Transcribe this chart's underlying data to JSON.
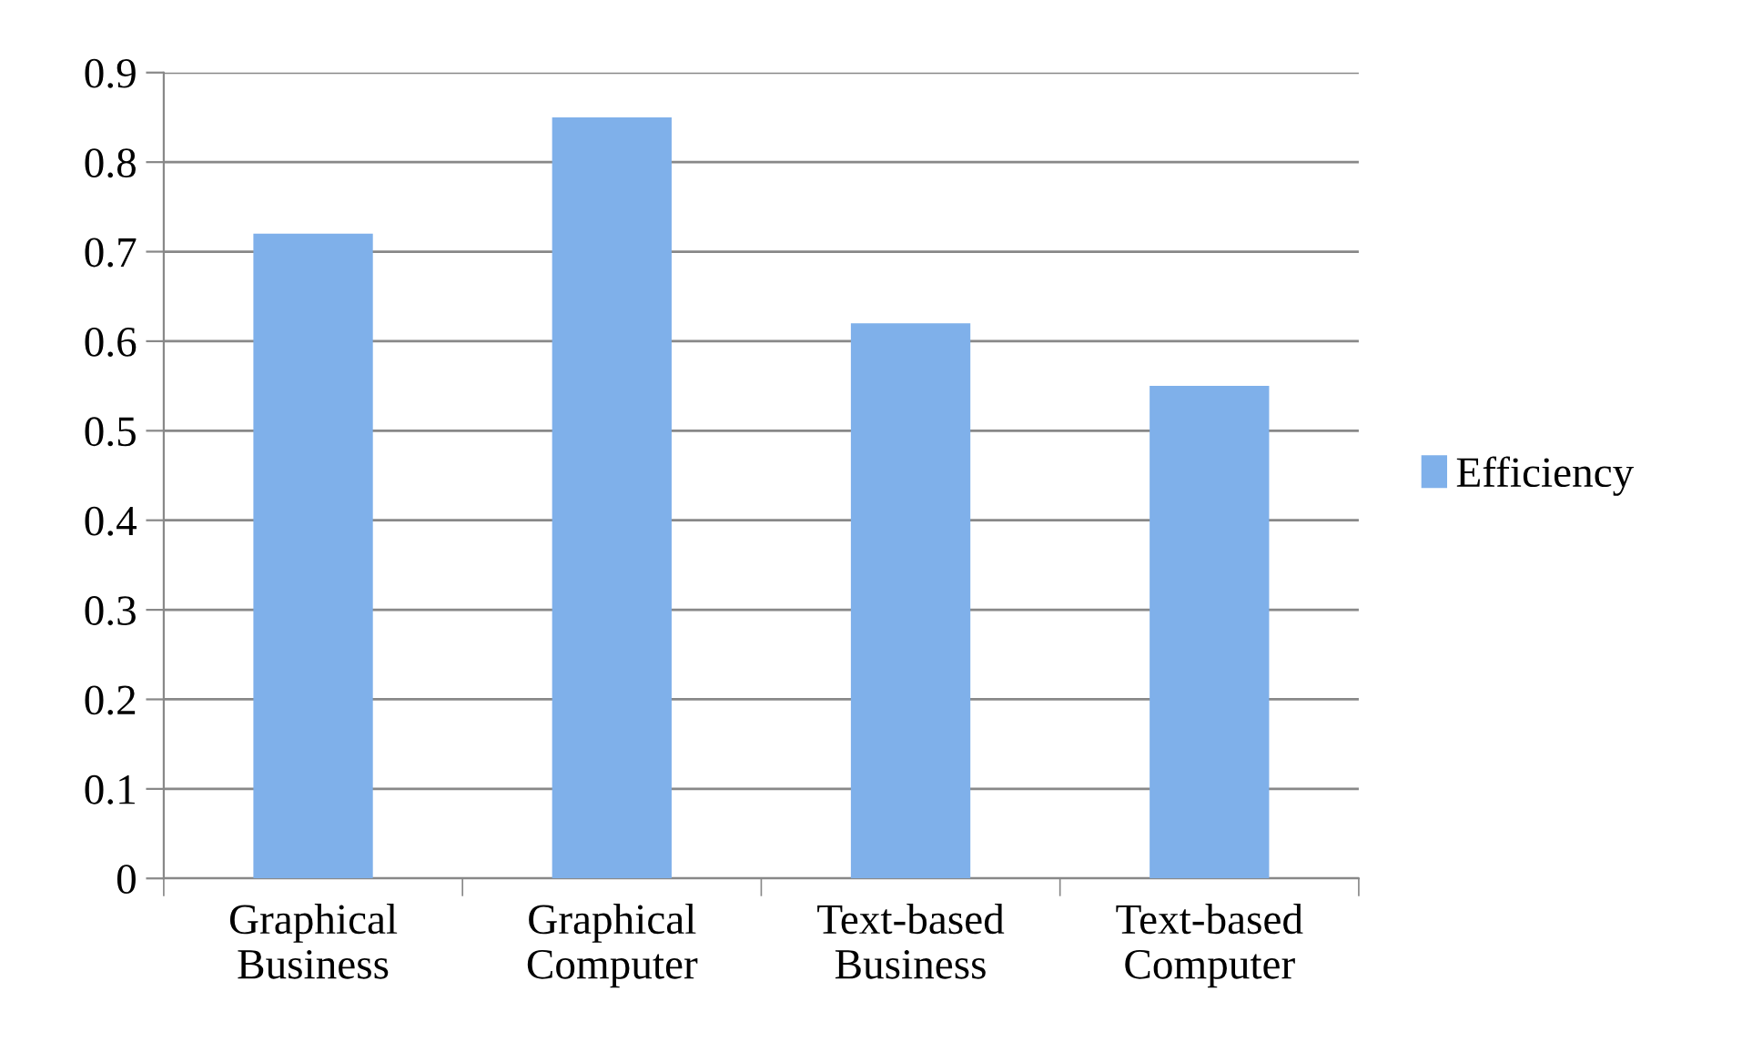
{
  "chart_data": {
    "type": "bar",
    "categories": [
      "Graphical\nBusiness",
      "Graphical\nComputer",
      "Text-based\nBusiness",
      "Text-based\nComputer"
    ],
    "series": [
      {
        "name": "Efficiency",
        "color": "#7fb0ea",
        "values": [
          0.72,
          0.85,
          0.62,
          0.55
        ]
      }
    ],
    "ylim": [
      0,
      0.9
    ],
    "yticks": [
      0,
      0.1,
      0.2,
      0.3,
      0.4,
      0.5,
      0.6,
      0.7,
      0.8,
      0.9
    ],
    "grid": "y",
    "legend": "right"
  }
}
